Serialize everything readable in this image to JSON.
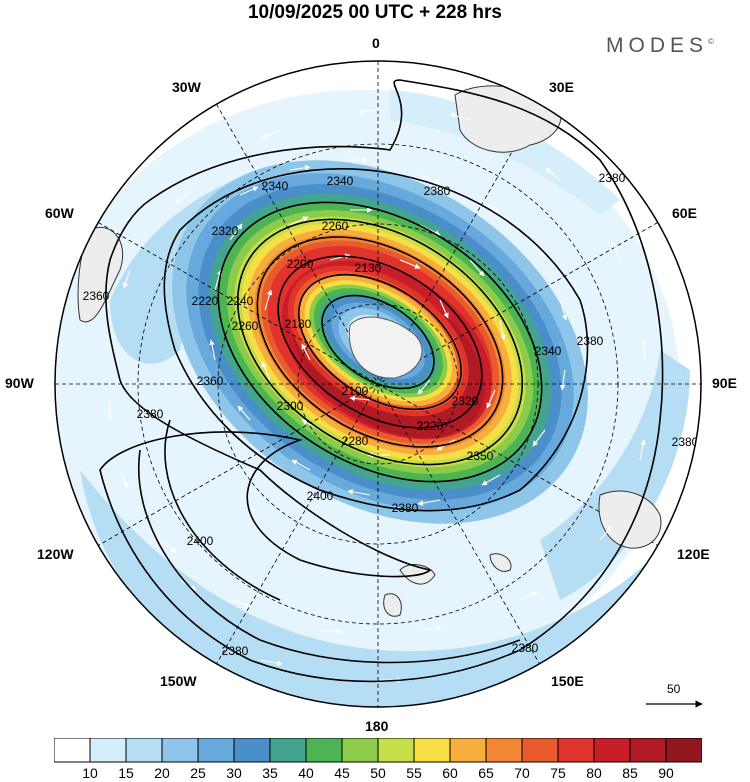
{
  "title": "10/09/2025  00 UTC  + 228 hrs",
  "brand": "MODES",
  "brand_mark": "©",
  "projection": "South polar stereographic",
  "longitude_labels": {
    "lon_0": "0",
    "lon_30e": "30E",
    "lon_60e": "60E",
    "lon_90e": "90E",
    "lon_120e": "120E",
    "lon_150e": "150E",
    "lon_180": "180",
    "lon_150w": "150W",
    "lon_120w": "120W",
    "lon_90w": "90W",
    "lon_60w": "60W",
    "lon_30w": "30W"
  },
  "contour_labels": [
    "2340",
    "2340",
    "2380",
    "2380",
    "2320",
    "2260",
    "2220",
    "2200",
    "2130",
    "2240",
    "2180",
    "2260",
    "2360",
    "2340",
    "2380",
    "2380",
    "2360",
    "2300",
    "2100",
    "2280",
    "2220",
    "2320",
    "2350",
    "2380",
    "2400",
    "2400",
    "2380",
    "2380"
  ],
  "wind_scale": {
    "value": "50"
  },
  "colorbar": {
    "ticks": [
      "10",
      "15",
      "20",
      "25",
      "30",
      "35",
      "40",
      "45",
      "50",
      "55",
      "60",
      "65",
      "70",
      "75",
      "80",
      "85",
      "90"
    ],
    "colors": [
      "#ffffff",
      "#d5eefb",
      "#b5def5",
      "#8ec6ea",
      "#67a9dc",
      "#4a8fc9",
      "#43a58d",
      "#4cb453",
      "#8dcc4b",
      "#c6de4a",
      "#f7de45",
      "#f6ae3c",
      "#f28634",
      "#ea5a2f",
      "#df332c",
      "#c71e2a",
      "#b01a24",
      "#921720"
    ]
  }
}
